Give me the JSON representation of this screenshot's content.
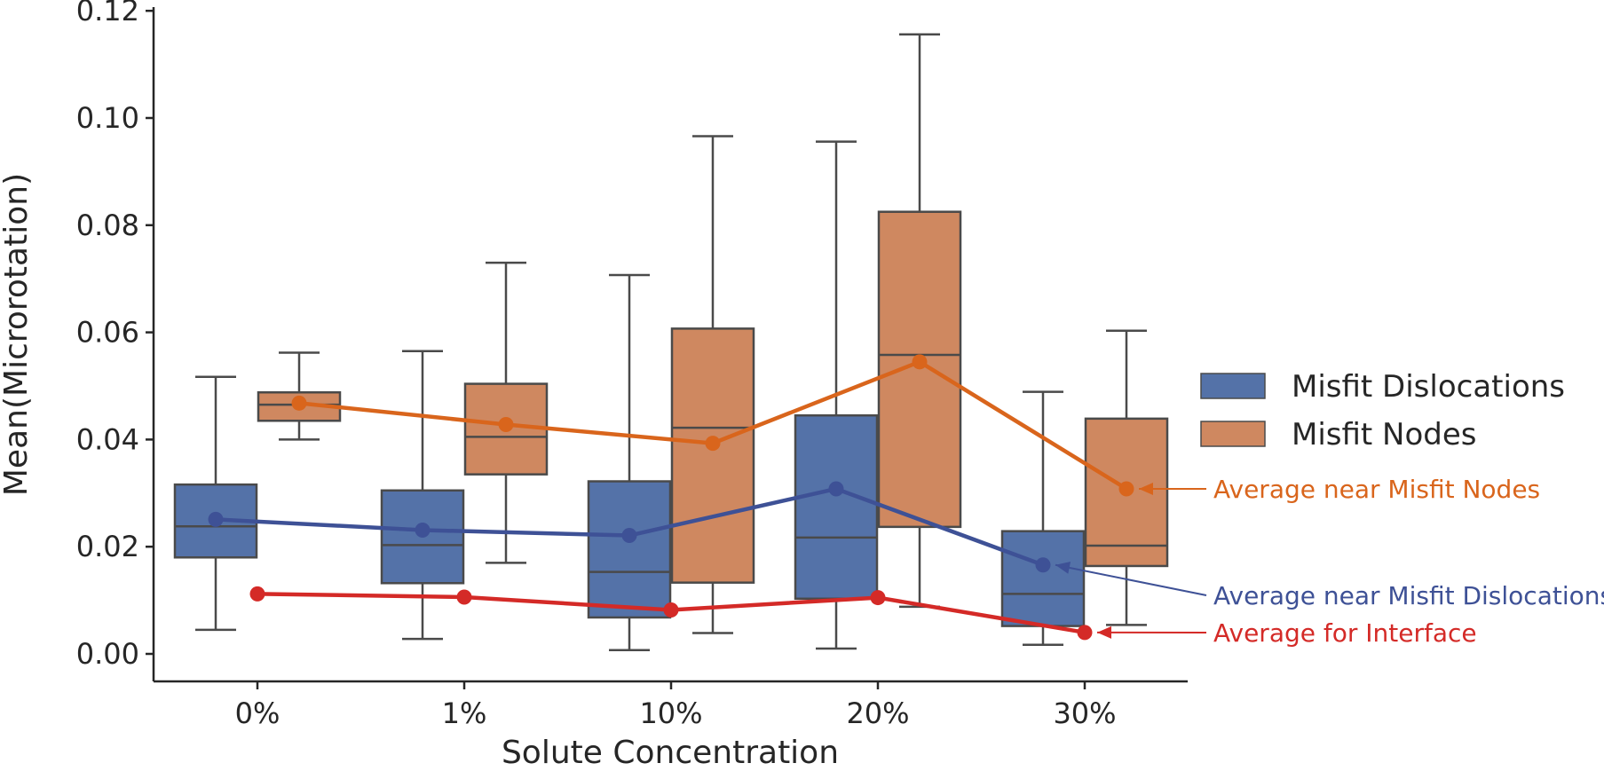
{
  "chart_data": {
    "type": "box",
    "xlabel": "Solute Concentration",
    "ylabel": "Mean(Microrotation)",
    "ylim": [
      -0.005,
      0.122
    ],
    "yticks": [
      "0.00",
      "0.02",
      "0.04",
      "0.06",
      "0.08",
      "0.10",
      "0.12"
    ],
    "ytick_values": [
      0.0,
      0.02,
      0.04,
      0.06,
      0.08,
      0.1,
      0.12
    ],
    "categories": [
      "0%",
      "1%",
      "10%",
      "20%",
      "30%"
    ],
    "box_series": [
      {
        "name": "Misfit Dislocations",
        "color": "#5472a8",
        "boxes": [
          {
            "whislo": 0.0045,
            "q1": 0.018,
            "med": 0.0238,
            "q3": 0.0316,
            "whishi": 0.0517
          },
          {
            "whislo": 0.0028,
            "q1": 0.0132,
            "med": 0.0203,
            "q3": 0.0305,
            "whishi": 0.0565
          },
          {
            "whislo": 0.0007,
            "q1": 0.0068,
            "med": 0.0153,
            "q3": 0.0322,
            "whishi": 0.0707
          },
          {
            "whislo": 0.001,
            "q1": 0.0103,
            "med": 0.0217,
            "q3": 0.0445,
            "whishi": 0.0956
          },
          {
            "whislo": 0.0017,
            "q1": 0.0052,
            "med": 0.0112,
            "q3": 0.0229,
            "whishi": 0.0489
          }
        ]
      },
      {
        "name": "Misfit Nodes",
        "color": "#cf8860",
        "boxes": [
          {
            "whislo": 0.04,
            "q1": 0.0435,
            "med": 0.0465,
            "q3": 0.0488,
            "whishi": 0.0562
          },
          {
            "whislo": 0.017,
            "q1": 0.0335,
            "med": 0.0405,
            "q3": 0.0504,
            "whishi": 0.073
          },
          {
            "whislo": 0.0039,
            "q1": 0.0133,
            "med": 0.0422,
            "q3": 0.0607,
            "whishi": 0.0966
          },
          {
            "whislo": 0.0088,
            "q1": 0.0237,
            "med": 0.0558,
            "q3": 0.0825,
            "whishi": 0.1156
          },
          {
            "whislo": 0.0054,
            "q1": 0.0164,
            "med": 0.0202,
            "q3": 0.0439,
            "whishi": 0.0603
          }
        ]
      }
    ],
    "line_series": [
      {
        "name": "Average near Misfit Nodes",
        "color": "#d9651c",
        "values": [
          0.0468,
          0.0428,
          0.0393,
          0.0545,
          0.0308
        ],
        "offset_group": 1
      },
      {
        "name": "Average near Misfit Dislocations",
        "color": "#3e5196",
        "values": [
          0.0251,
          0.0231,
          0.0221,
          0.0308,
          0.0166
        ],
        "offset_group": 0
      },
      {
        "name": "Average for Interface",
        "color": "#d42a27",
        "values": [
          0.0112,
          0.0106,
          0.0082,
          0.0105,
          0.004
        ],
        "offset_group": "center"
      }
    ],
    "legend": {
      "position": "right",
      "entries": [
        "Misfit Dislocations",
        "Misfit Nodes"
      ]
    },
    "annotations": [
      {
        "text": "Average near Misfit Nodes",
        "color": "#d9651c"
      },
      {
        "text": "Average near Misfit Dislocations",
        "color": "#3e5196"
      },
      {
        "text": "Average for Interface",
        "color": "#d42a27"
      }
    ],
    "grid": false
  }
}
